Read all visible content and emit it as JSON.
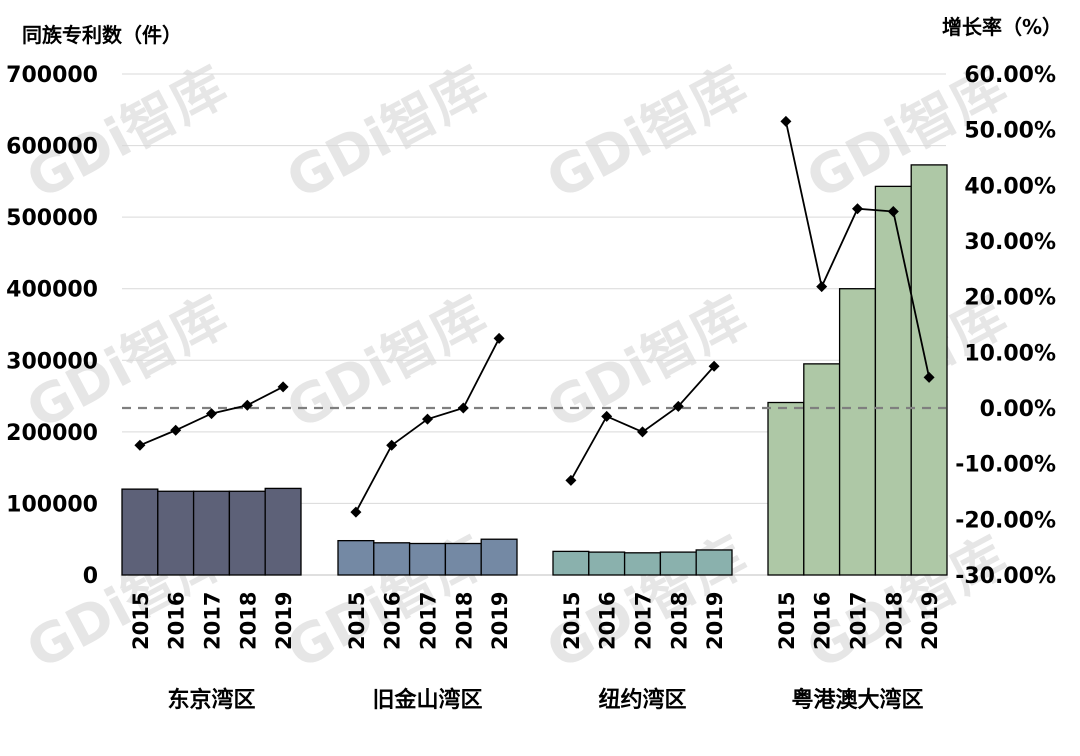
{
  "chart_data": {
    "type": "bar",
    "title": "",
    "y_left_label": "同族专利数（件）",
    "y_right_label": "增长率（%）",
    "y_left_ticks": [
      "700000",
      "600000",
      "500000",
      "400000",
      "300000",
      "200000",
      "100000",
      "0"
    ],
    "y_right_ticks": [
      "60.00%",
      "50.00%",
      "40.00%",
      "30.00%",
      "20.00%",
      "10.00%",
      "0.00%",
      "-10.00%",
      "-20.00%",
      "-30.00%"
    ],
    "ylim_left": [
      0,
      700000
    ],
    "ylim_right": [
      -0.3,
      0.6
    ],
    "grid": true,
    "zero_growth_reference_line": "dashed",
    "years": [
      "2015",
      "2016",
      "2017",
      "2018",
      "2019"
    ],
    "groups": [
      {
        "name": "东京湾区",
        "bar_color": "#5d6178",
        "patents": [
          120000,
          117000,
          117000,
          117000,
          121000
        ],
        "growth": [
          -0.067,
          -0.04,
          -0.01,
          0.005,
          0.038
        ]
      },
      {
        "name": "旧金山湾区",
        "bar_color": "#7489a4",
        "patents": [
          48000,
          45000,
          44000,
          44000,
          50000
        ],
        "growth": [
          -0.187,
          -0.067,
          -0.02,
          0.0,
          0.125
        ]
      },
      {
        "name": "纽约湾区",
        "bar_color": "#8ab1ad",
        "patents": [
          33000,
          32000,
          31000,
          32000,
          35000
        ],
        "growth": [
          -0.13,
          -0.015,
          -0.043,
          0.003,
          0.075
        ]
      },
      {
        "name": "粤港澳大湾区",
        "bar_color": "#aec8a6",
        "patents": [
          241000,
          295000,
          400000,
          543000,
          573000
        ],
        "growth": [
          0.515,
          0.218,
          0.358,
          0.353,
          0.055
        ]
      }
    ]
  },
  "watermark": "GDi智库"
}
